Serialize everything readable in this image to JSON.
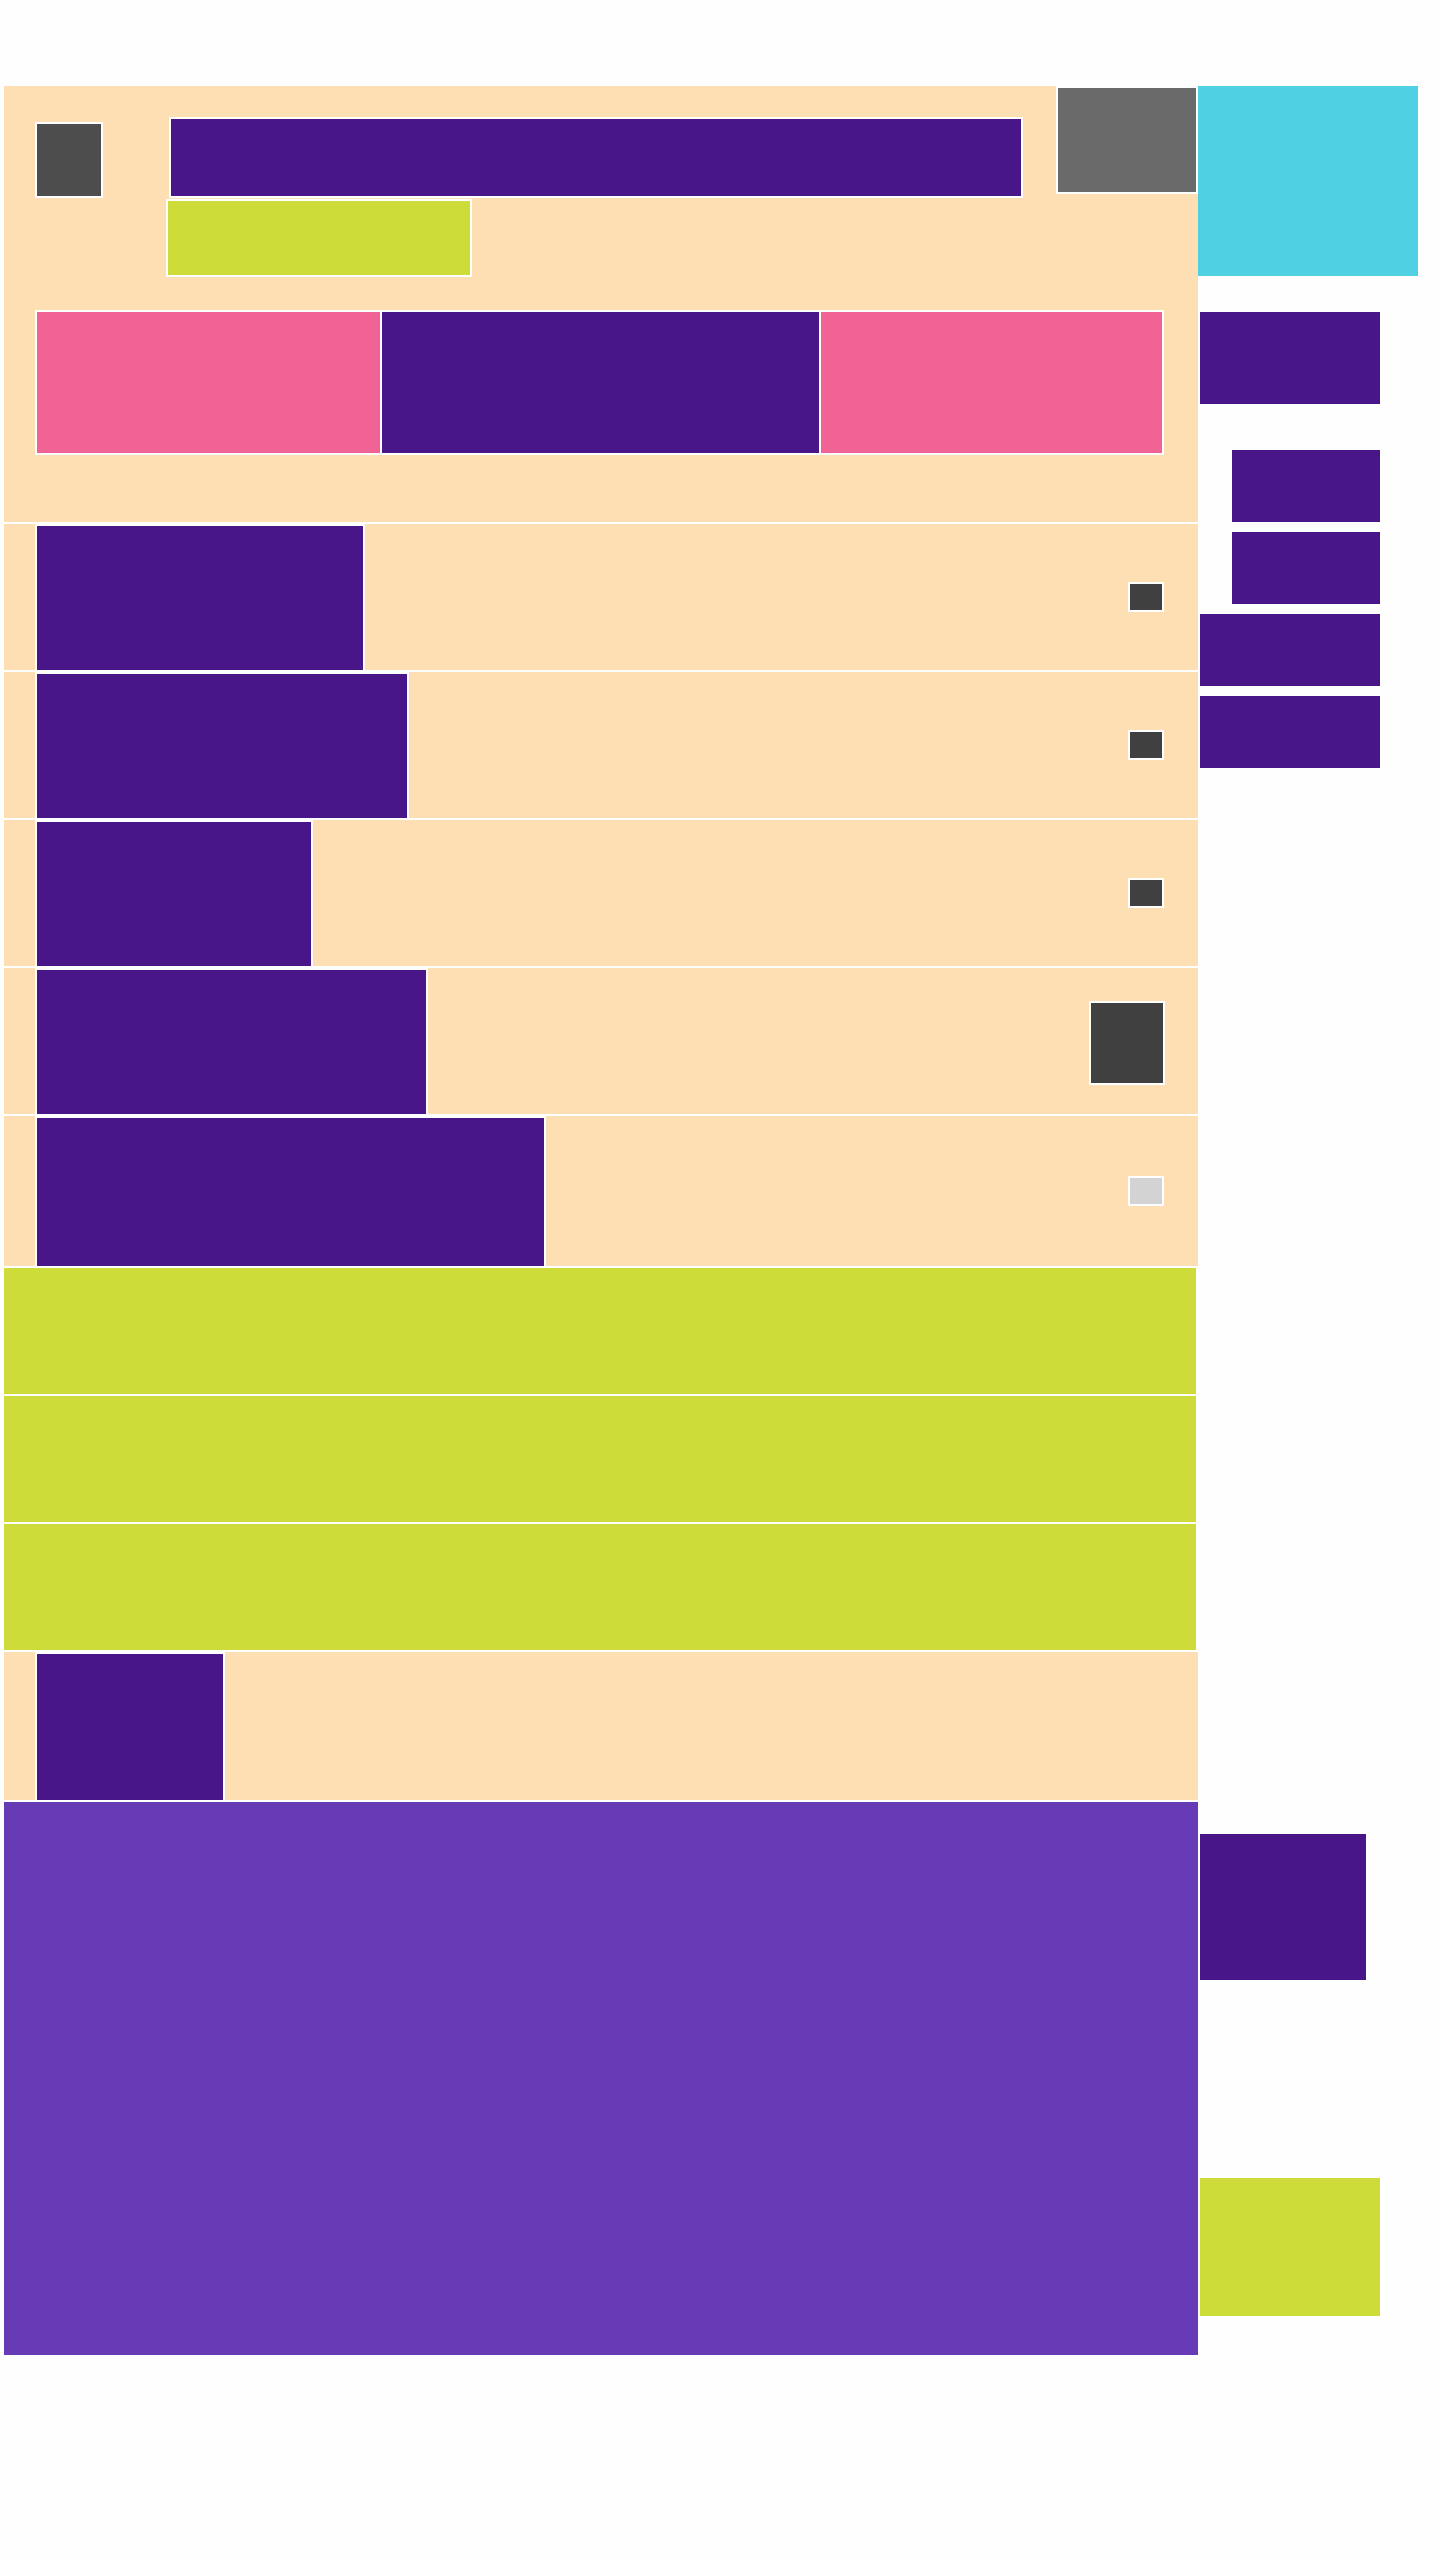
{
  "colors": {
    "page_background": "#fefefe",
    "panel_background": "#fddfb3",
    "primary_block": "#491689",
    "accent_pink": "#f06394",
    "accent_lime": "#cedc39",
    "accent_cyan": "#4fd1e3",
    "media_grey": "#6b6a6b",
    "footer_violet": "#673bb6",
    "icon_dark": "#404040",
    "icon_light": "#d3d3d3"
  },
  "header": {
    "title": "",
    "subtitle": "",
    "menu_icon": "menu-icon",
    "media_icon": "image-icon"
  },
  "tabs": [
    {
      "label": ""
    },
    {
      "label": ""
    },
    {
      "label": ""
    }
  ],
  "list_rows": [
    {
      "label": "",
      "icon": "chevron-icon"
    },
    {
      "label": "",
      "icon": "chevron-icon"
    },
    {
      "label": "",
      "icon": "chevron-icon"
    },
    {
      "label": "",
      "icon": "image-icon"
    },
    {
      "label": "",
      "icon": "checkbox-icon"
    }
  ],
  "action_bars": [
    {
      "label": ""
    },
    {
      "label": ""
    },
    {
      "label": ""
    }
  ],
  "final_row": {
    "label": ""
  },
  "sidebar": {
    "items": [
      {
        "label": ""
      },
      {
        "label": ""
      },
      {
        "label": ""
      },
      {
        "label": ""
      },
      {
        "label": ""
      }
    ],
    "footer_item": {
      "label": ""
    },
    "footer_button": {
      "label": ""
    }
  },
  "footer": {
    "text": ""
  }
}
